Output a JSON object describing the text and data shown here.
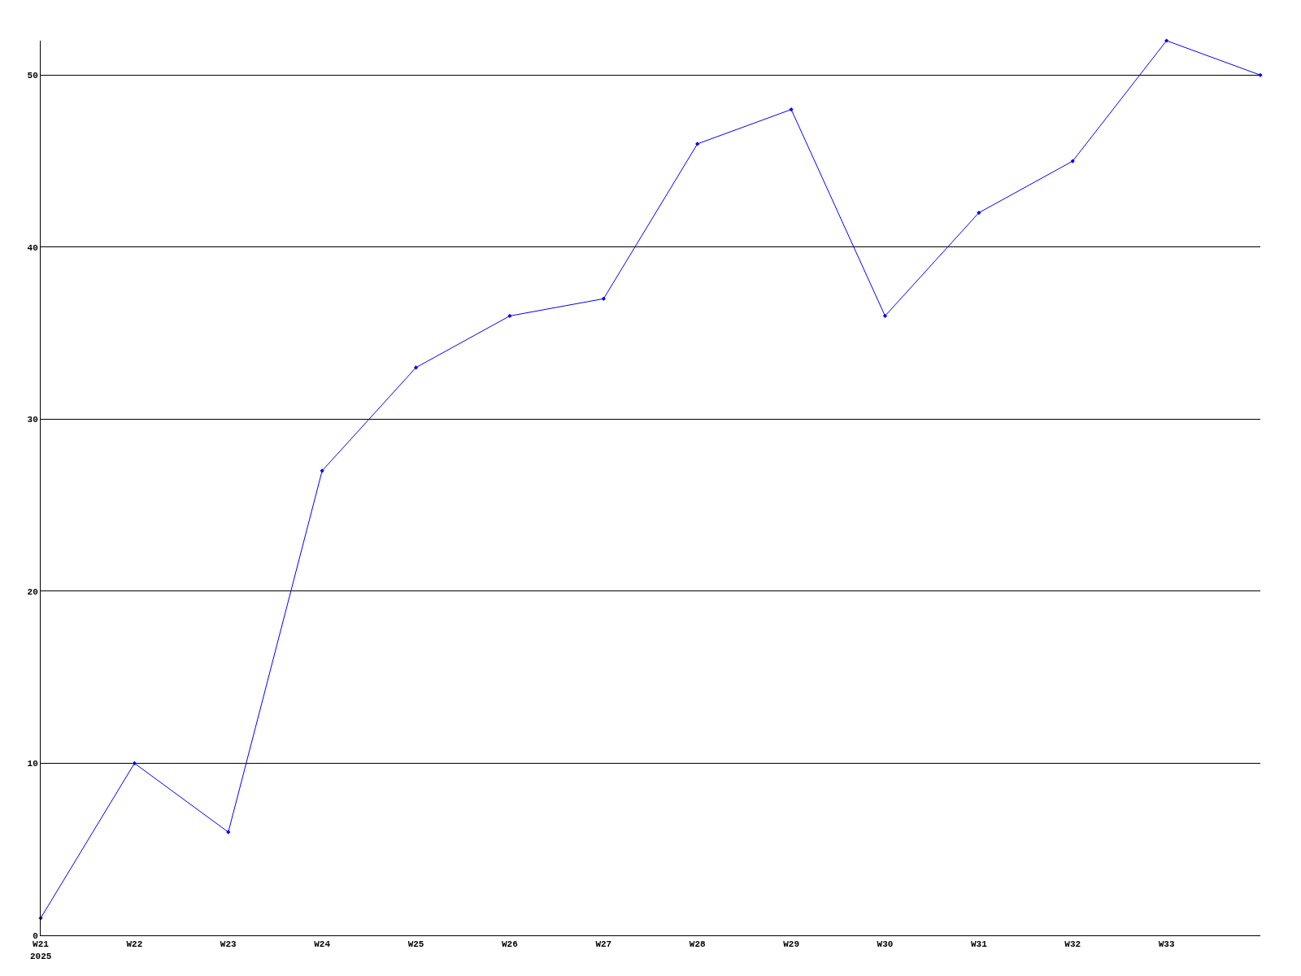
{
  "chart_data": {
    "type": "line",
    "categories": [
      "W21",
      "W22",
      "W23",
      "W24",
      "W25",
      "W26",
      "W27",
      "W28",
      "W29",
      "W30",
      "W31",
      "W32",
      "W33",
      null
    ],
    "series": [
      {
        "color": "#0000ff",
        "values": [
          1,
          10,
          6,
          27,
          33,
          36,
          37,
          46,
          48,
          36,
          42,
          45,
          52,
          50
        ]
      }
    ],
    "ylim": [
      0,
      52
    ],
    "yticks": [
      0,
      10,
      20,
      30,
      40,
      50
    ],
    "grid": "y",
    "marker": "diamond",
    "line_style": "solid",
    "annotations": [
      "2025"
    ]
  }
}
